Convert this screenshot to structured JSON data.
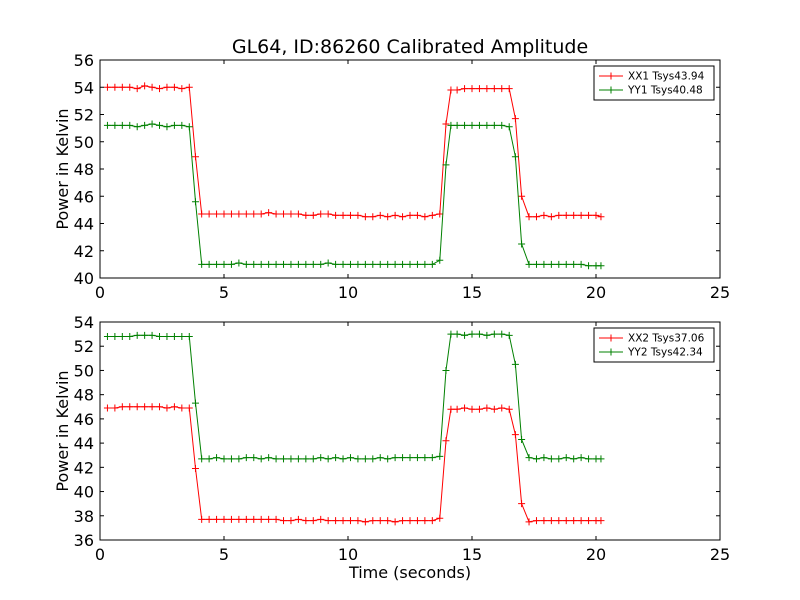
{
  "figure": {
    "title": "GL64, ID:86260 Calibrated Amplitude",
    "xlabel": "Time (seconds)"
  },
  "colors": {
    "series_a": "#ff0000",
    "series_b": "#008000",
    "axes": "#000000"
  },
  "chart_data": [
    {
      "type": "line",
      "ylabel": "Power in Kelvin",
      "xlim": [
        0,
        25
      ],
      "ylim": [
        40,
        56
      ],
      "xticks": [
        0,
        5,
        10,
        15,
        20,
        25
      ],
      "yticks": [
        40,
        42,
        44,
        46,
        48,
        50,
        52,
        54,
        56
      ],
      "grid": false,
      "legend_position": "top-right",
      "x": [
        0.3,
        0.6,
        0.9,
        1.2,
        1.5,
        1.8,
        2.1,
        2.4,
        2.7,
        3.0,
        3.3,
        3.6,
        3.85,
        4.1,
        4.4,
        4.7,
        5.0,
        5.3,
        5.6,
        5.9,
        6.2,
        6.5,
        6.8,
        7.1,
        7.4,
        7.7,
        8.0,
        8.3,
        8.6,
        8.9,
        9.2,
        9.5,
        9.8,
        10.1,
        10.4,
        10.7,
        11.0,
        11.3,
        11.6,
        11.9,
        12.2,
        12.5,
        12.8,
        13.1,
        13.4,
        13.7,
        13.95,
        14.15,
        14.4,
        14.7,
        15.0,
        15.3,
        15.6,
        15.9,
        16.2,
        16.5,
        16.75,
        17.0,
        17.3,
        17.6,
        17.9,
        18.2,
        18.5,
        18.8,
        19.1,
        19.4,
        19.7,
        20.0,
        20.2
      ],
      "series": [
        {
          "name": "XX1 Tsys43.94",
          "color": "#ff0000",
          "values": [
            54.0,
            54.0,
            54.0,
            54.0,
            53.9,
            54.1,
            54.0,
            53.9,
            54.0,
            54.0,
            53.9,
            54.0,
            48.9,
            44.7,
            44.7,
            44.7,
            44.7,
            44.7,
            44.7,
            44.7,
            44.7,
            44.7,
            44.8,
            44.7,
            44.7,
            44.7,
            44.7,
            44.6,
            44.6,
            44.7,
            44.7,
            44.6,
            44.6,
            44.6,
            44.6,
            44.5,
            44.5,
            44.6,
            44.5,
            44.6,
            44.5,
            44.6,
            44.6,
            44.5,
            44.6,
            44.7,
            51.3,
            53.8,
            53.8,
            53.9,
            53.9,
            53.9,
            53.9,
            53.9,
            53.9,
            53.9,
            51.7,
            46.0,
            44.5,
            44.5,
            44.6,
            44.5,
            44.6,
            44.6,
            44.6,
            44.6,
            44.6,
            44.6,
            44.5
          ]
        },
        {
          "name": "YY1 Tsys40.48",
          "color": "#008000",
          "values": [
            51.2,
            51.2,
            51.2,
            51.2,
            51.1,
            51.2,
            51.3,
            51.2,
            51.1,
            51.2,
            51.2,
            51.1,
            45.6,
            41.0,
            41.0,
            41.0,
            41.0,
            41.0,
            41.1,
            41.0,
            41.0,
            41.0,
            41.0,
            41.0,
            41.0,
            41.0,
            41.0,
            41.0,
            41.0,
            41.0,
            41.1,
            41.0,
            41.0,
            41.0,
            41.0,
            41.0,
            41.0,
            41.0,
            41.0,
            41.0,
            41.0,
            41.0,
            41.0,
            41.0,
            41.0,
            41.3,
            48.3,
            51.2,
            51.2,
            51.2,
            51.2,
            51.2,
            51.2,
            51.2,
            51.2,
            51.1,
            48.9,
            42.5,
            41.0,
            41.0,
            41.0,
            41.0,
            41.0,
            41.0,
            41.0,
            41.0,
            40.9,
            40.9,
            40.9
          ]
        }
      ]
    },
    {
      "type": "line",
      "ylabel": "Power in Kelvin",
      "xlabel": "Time (seconds)",
      "xlim": [
        0,
        25
      ],
      "ylim": [
        36,
        54
      ],
      "xticks": [
        0,
        5,
        10,
        15,
        20,
        25
      ],
      "yticks": [
        36,
        38,
        40,
        42,
        44,
        46,
        48,
        50,
        52,
        54
      ],
      "grid": false,
      "legend_position": "top-right",
      "x": [
        0.3,
        0.6,
        0.9,
        1.2,
        1.5,
        1.8,
        2.1,
        2.4,
        2.7,
        3.0,
        3.3,
        3.6,
        3.85,
        4.1,
        4.4,
        4.7,
        5.0,
        5.3,
        5.6,
        5.9,
        6.2,
        6.5,
        6.8,
        7.1,
        7.4,
        7.7,
        8.0,
        8.3,
        8.6,
        8.9,
        9.2,
        9.5,
        9.8,
        10.1,
        10.4,
        10.7,
        11.0,
        11.3,
        11.6,
        11.9,
        12.2,
        12.5,
        12.8,
        13.1,
        13.4,
        13.7,
        13.95,
        14.15,
        14.4,
        14.7,
        15.0,
        15.3,
        15.6,
        15.9,
        16.2,
        16.5,
        16.75,
        17.0,
        17.3,
        17.6,
        17.9,
        18.2,
        18.5,
        18.8,
        19.1,
        19.4,
        19.7,
        20.0,
        20.2
      ],
      "series": [
        {
          "name": "XX2 Tsys37.06",
          "color": "#ff0000",
          "values": [
            46.9,
            46.9,
            47.0,
            47.0,
            47.0,
            47.0,
            47.0,
            47.0,
            46.9,
            47.0,
            46.9,
            46.9,
            41.9,
            37.7,
            37.7,
            37.7,
            37.7,
            37.7,
            37.7,
            37.7,
            37.7,
            37.7,
            37.7,
            37.7,
            37.6,
            37.6,
            37.7,
            37.6,
            37.6,
            37.7,
            37.6,
            37.6,
            37.6,
            37.6,
            37.6,
            37.5,
            37.6,
            37.6,
            37.6,
            37.5,
            37.6,
            37.6,
            37.6,
            37.6,
            37.6,
            37.8,
            44.2,
            46.8,
            46.8,
            46.9,
            46.8,
            46.8,
            46.9,
            46.8,
            46.9,
            46.8,
            44.7,
            39.0,
            37.5,
            37.6,
            37.6,
            37.6,
            37.6,
            37.6,
            37.6,
            37.6,
            37.6,
            37.6,
            37.6
          ]
        },
        {
          "name": "YY2 Tsys42.34",
          "color": "#008000",
          "values": [
            52.8,
            52.8,
            52.8,
            52.8,
            52.9,
            52.9,
            52.9,
            52.8,
            52.8,
            52.8,
            52.8,
            52.8,
            47.3,
            42.7,
            42.7,
            42.8,
            42.7,
            42.7,
            42.7,
            42.8,
            42.8,
            42.7,
            42.8,
            42.7,
            42.7,
            42.7,
            42.7,
            42.7,
            42.7,
            42.8,
            42.7,
            42.8,
            42.7,
            42.8,
            42.7,
            42.7,
            42.7,
            42.8,
            42.7,
            42.8,
            42.8,
            42.8,
            42.8,
            42.8,
            42.8,
            42.9,
            50.0,
            53.0,
            53.0,
            52.9,
            53.0,
            53.0,
            52.9,
            53.0,
            53.0,
            52.9,
            50.5,
            44.3,
            42.8,
            42.7,
            42.8,
            42.7,
            42.7,
            42.8,
            42.7,
            42.8,
            42.7,
            42.7,
            42.7
          ]
        }
      ]
    }
  ]
}
